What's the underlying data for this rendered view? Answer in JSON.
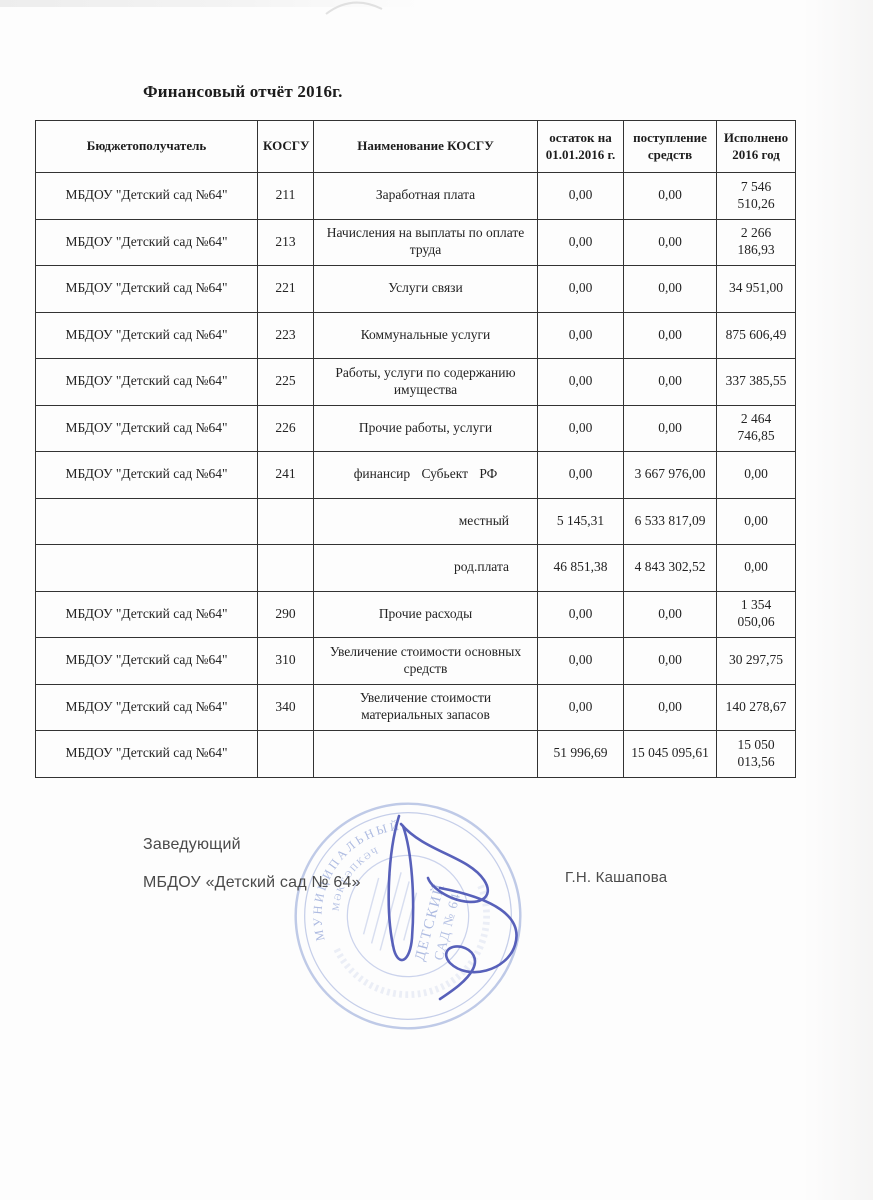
{
  "document": {
    "title": "Финансовый отчёт 2016г."
  },
  "table": {
    "headers": [
      "Бюджетополучатель",
      "КОСГУ",
      "Наименование КОСГУ",
      "остаток на 01.01.2016 г.",
      "поступление средств",
      "Исполнено 2016 год"
    ],
    "rows": [
      [
        "МБДОУ \"Детский сад №64\"",
        "211",
        "Заработная плата",
        "0,00",
        "0,00",
        "7 546 510,26"
      ],
      [
        "МБДОУ \"Детский сад №64\"",
        "213",
        "Начисления на выплаты по оплате труда",
        "0,00",
        "0,00",
        "2 266 186,93"
      ],
      [
        "МБДОУ \"Детский сад №64\"",
        "221",
        "Услуги связи",
        "0,00",
        "0,00",
        "34 951,00"
      ],
      [
        "МБДОУ \"Детский сад №64\"",
        "223",
        "Коммунальные услуги",
        "0,00",
        "0,00",
        "875 606,49"
      ],
      [
        "МБДОУ \"Детский сад №64\"",
        "225",
        "Работы, услуги по содержанию имущества",
        "0,00",
        "0,00",
        "337 385,55"
      ],
      [
        "МБДОУ \"Детский сад №64\"",
        "226",
        "Прочие работы, услуги",
        "0,00",
        "0,00",
        "2 464 746,85"
      ],
      [
        "МБДОУ \"Детский сад №64\"",
        "241",
        "финансир Субьект РФ",
        "0,00",
        "3 667 976,00",
        "0,00"
      ],
      [
        "",
        "",
        "местный",
        "5 145,31",
        "6 533 817,09",
        "0,00"
      ],
      [
        "",
        "",
        "род.плата",
        "46 851,38",
        "4 843 302,52",
        "0,00"
      ],
      [
        "МБДОУ \"Детский сад №64\"",
        "290",
        "Прочие расходы",
        "0,00",
        "0,00",
        "1 354 050,06"
      ],
      [
        "МБДОУ \"Детский сад №64\"",
        "310",
        "Увеличение стоимости основных средств",
        "0,00",
        "0,00",
        "30 297,75"
      ],
      [
        "МБДОУ \"Детский сад №64\"",
        "340",
        "Увеличение стоимости материальных запасов",
        "0,00",
        "0,00",
        "140 278,67"
      ],
      [
        "МБДОУ \"Детский сад №64\"",
        "",
        "",
        "51 996,69",
        "15 045 095,61",
        "15 050 013,56"
      ]
    ]
  },
  "footer": {
    "role_label": "Заведующий",
    "organization": "МБДОУ «Детский сад № 64»",
    "signer_name": "Г.Н. Кашапова"
  },
  "stamp": {
    "ring_text_outer": "МУНИЦИПАЛЬНЫЙ",
    "ring_text_inner": "МӘКТӘПКӘЧ",
    "center_line1": "ДЕТСКИЙ",
    "center_line2": "САД № 64",
    "ink_color": "#8da0d6",
    "signature_color": "#4b54b5"
  }
}
